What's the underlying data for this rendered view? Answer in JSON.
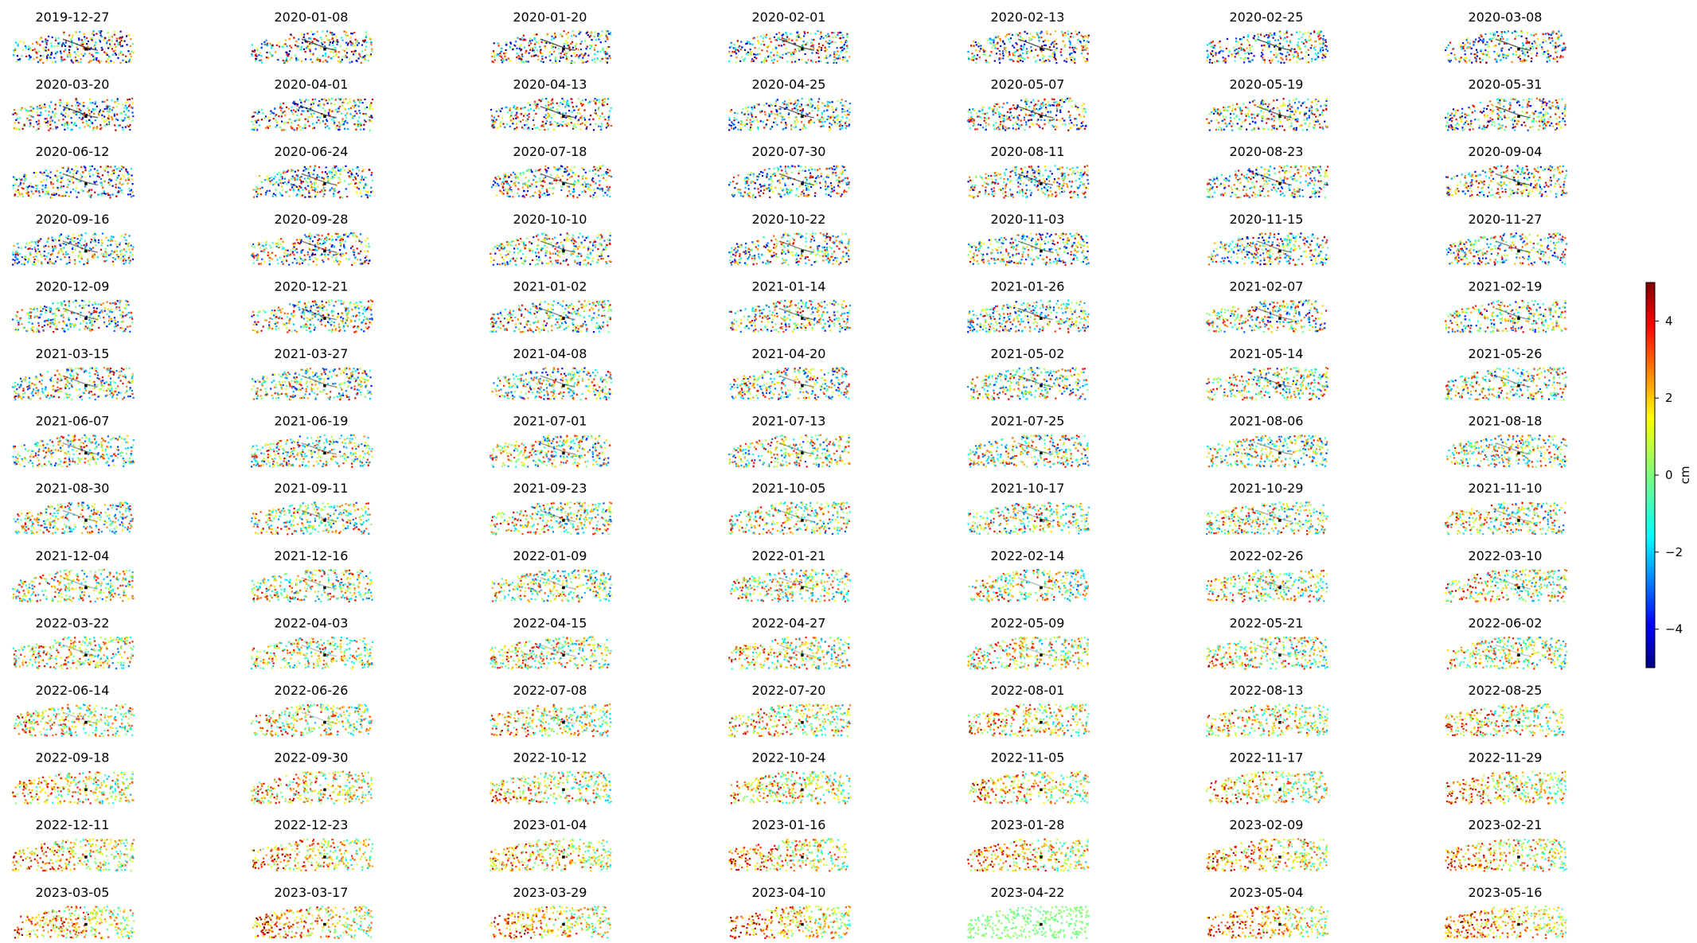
{
  "chart_data": {
    "type": "heatmap",
    "description_of_tiles": "small-multiple displacement maps, one per acquisition date",
    "dates": [
      "2019-12-27",
      "2020-01-08",
      "2020-01-20",
      "2020-02-01",
      "2020-02-13",
      "2020-02-25",
      "2020-03-08",
      "2020-03-20",
      "2020-04-01",
      "2020-04-13",
      "2020-04-25",
      "2020-05-07",
      "2020-05-19",
      "2020-05-31",
      "2020-06-12",
      "2020-06-24",
      "2020-07-18",
      "2020-07-30",
      "2020-08-11",
      "2020-08-23",
      "2020-09-04",
      "2020-09-16",
      "2020-09-28",
      "2020-10-10",
      "2020-10-22",
      "2020-11-03",
      "2020-11-15",
      "2020-11-27",
      "2020-12-09",
      "2020-12-21",
      "2021-01-02",
      "2021-01-14",
      "2021-01-26",
      "2021-02-07",
      "2021-02-19",
      "2021-03-15",
      "2021-03-27",
      "2021-04-08",
      "2021-04-20",
      "2021-05-02",
      "2021-05-14",
      "2021-05-26",
      "2021-06-07",
      "2021-06-19",
      "2021-07-01",
      "2021-07-13",
      "2021-07-25",
      "2021-08-06",
      "2021-08-18",
      "2021-08-30",
      "2021-09-11",
      "2021-09-23",
      "2021-10-05",
      "2021-10-17",
      "2021-10-29",
      "2021-11-10",
      "2021-12-04",
      "2021-12-16",
      "2022-01-09",
      "2022-01-21",
      "2022-02-14",
      "2022-02-26",
      "2022-03-10",
      "2022-03-22",
      "2022-04-03",
      "2022-04-15",
      "2022-04-27",
      "2022-05-09",
      "2022-05-21",
      "2022-06-02",
      "2022-06-14",
      "2022-06-26",
      "2022-07-08",
      "2022-07-20",
      "2022-08-01",
      "2022-08-13",
      "2022-08-25",
      "2022-09-18",
      "2022-09-30",
      "2022-10-12",
      "2022-10-24",
      "2022-11-05",
      "2022-11-17",
      "2022-11-29",
      "2022-12-11",
      "2022-12-23",
      "2023-01-04",
      "2023-01-16",
      "2023-01-28",
      "2023-02-09",
      "2023-02-21",
      "2023-03-05",
      "2023-03-17",
      "2023-03-29",
      "2023-04-10",
      "2023-04-22",
      "2023-05-04",
      "2023-05-16"
    ],
    "grid": {
      "rows": 14,
      "cols": 7
    },
    "colorbar": {
      "label": "cm",
      "range": [
        -5,
        5
      ],
      "ticks": [
        4,
        2,
        0,
        -2,
        -4
      ],
      "tick_labels": [
        "4",
        "2",
        "0",
        "−2",
        "−4"
      ],
      "colormap": "jet"
    },
    "reference_tile_note": "2023-04-22 tile is near-uniform (~0 cm, light green)"
  },
  "colors": {
    "jet_stops": [
      "#00007f",
      "#0000ff",
      "#007fff",
      "#00ffff",
      "#7fff7f",
      "#ffff00",
      "#ff7f00",
      "#ff0000",
      "#7f0000"
    ],
    "reference_point": "#000000"
  }
}
